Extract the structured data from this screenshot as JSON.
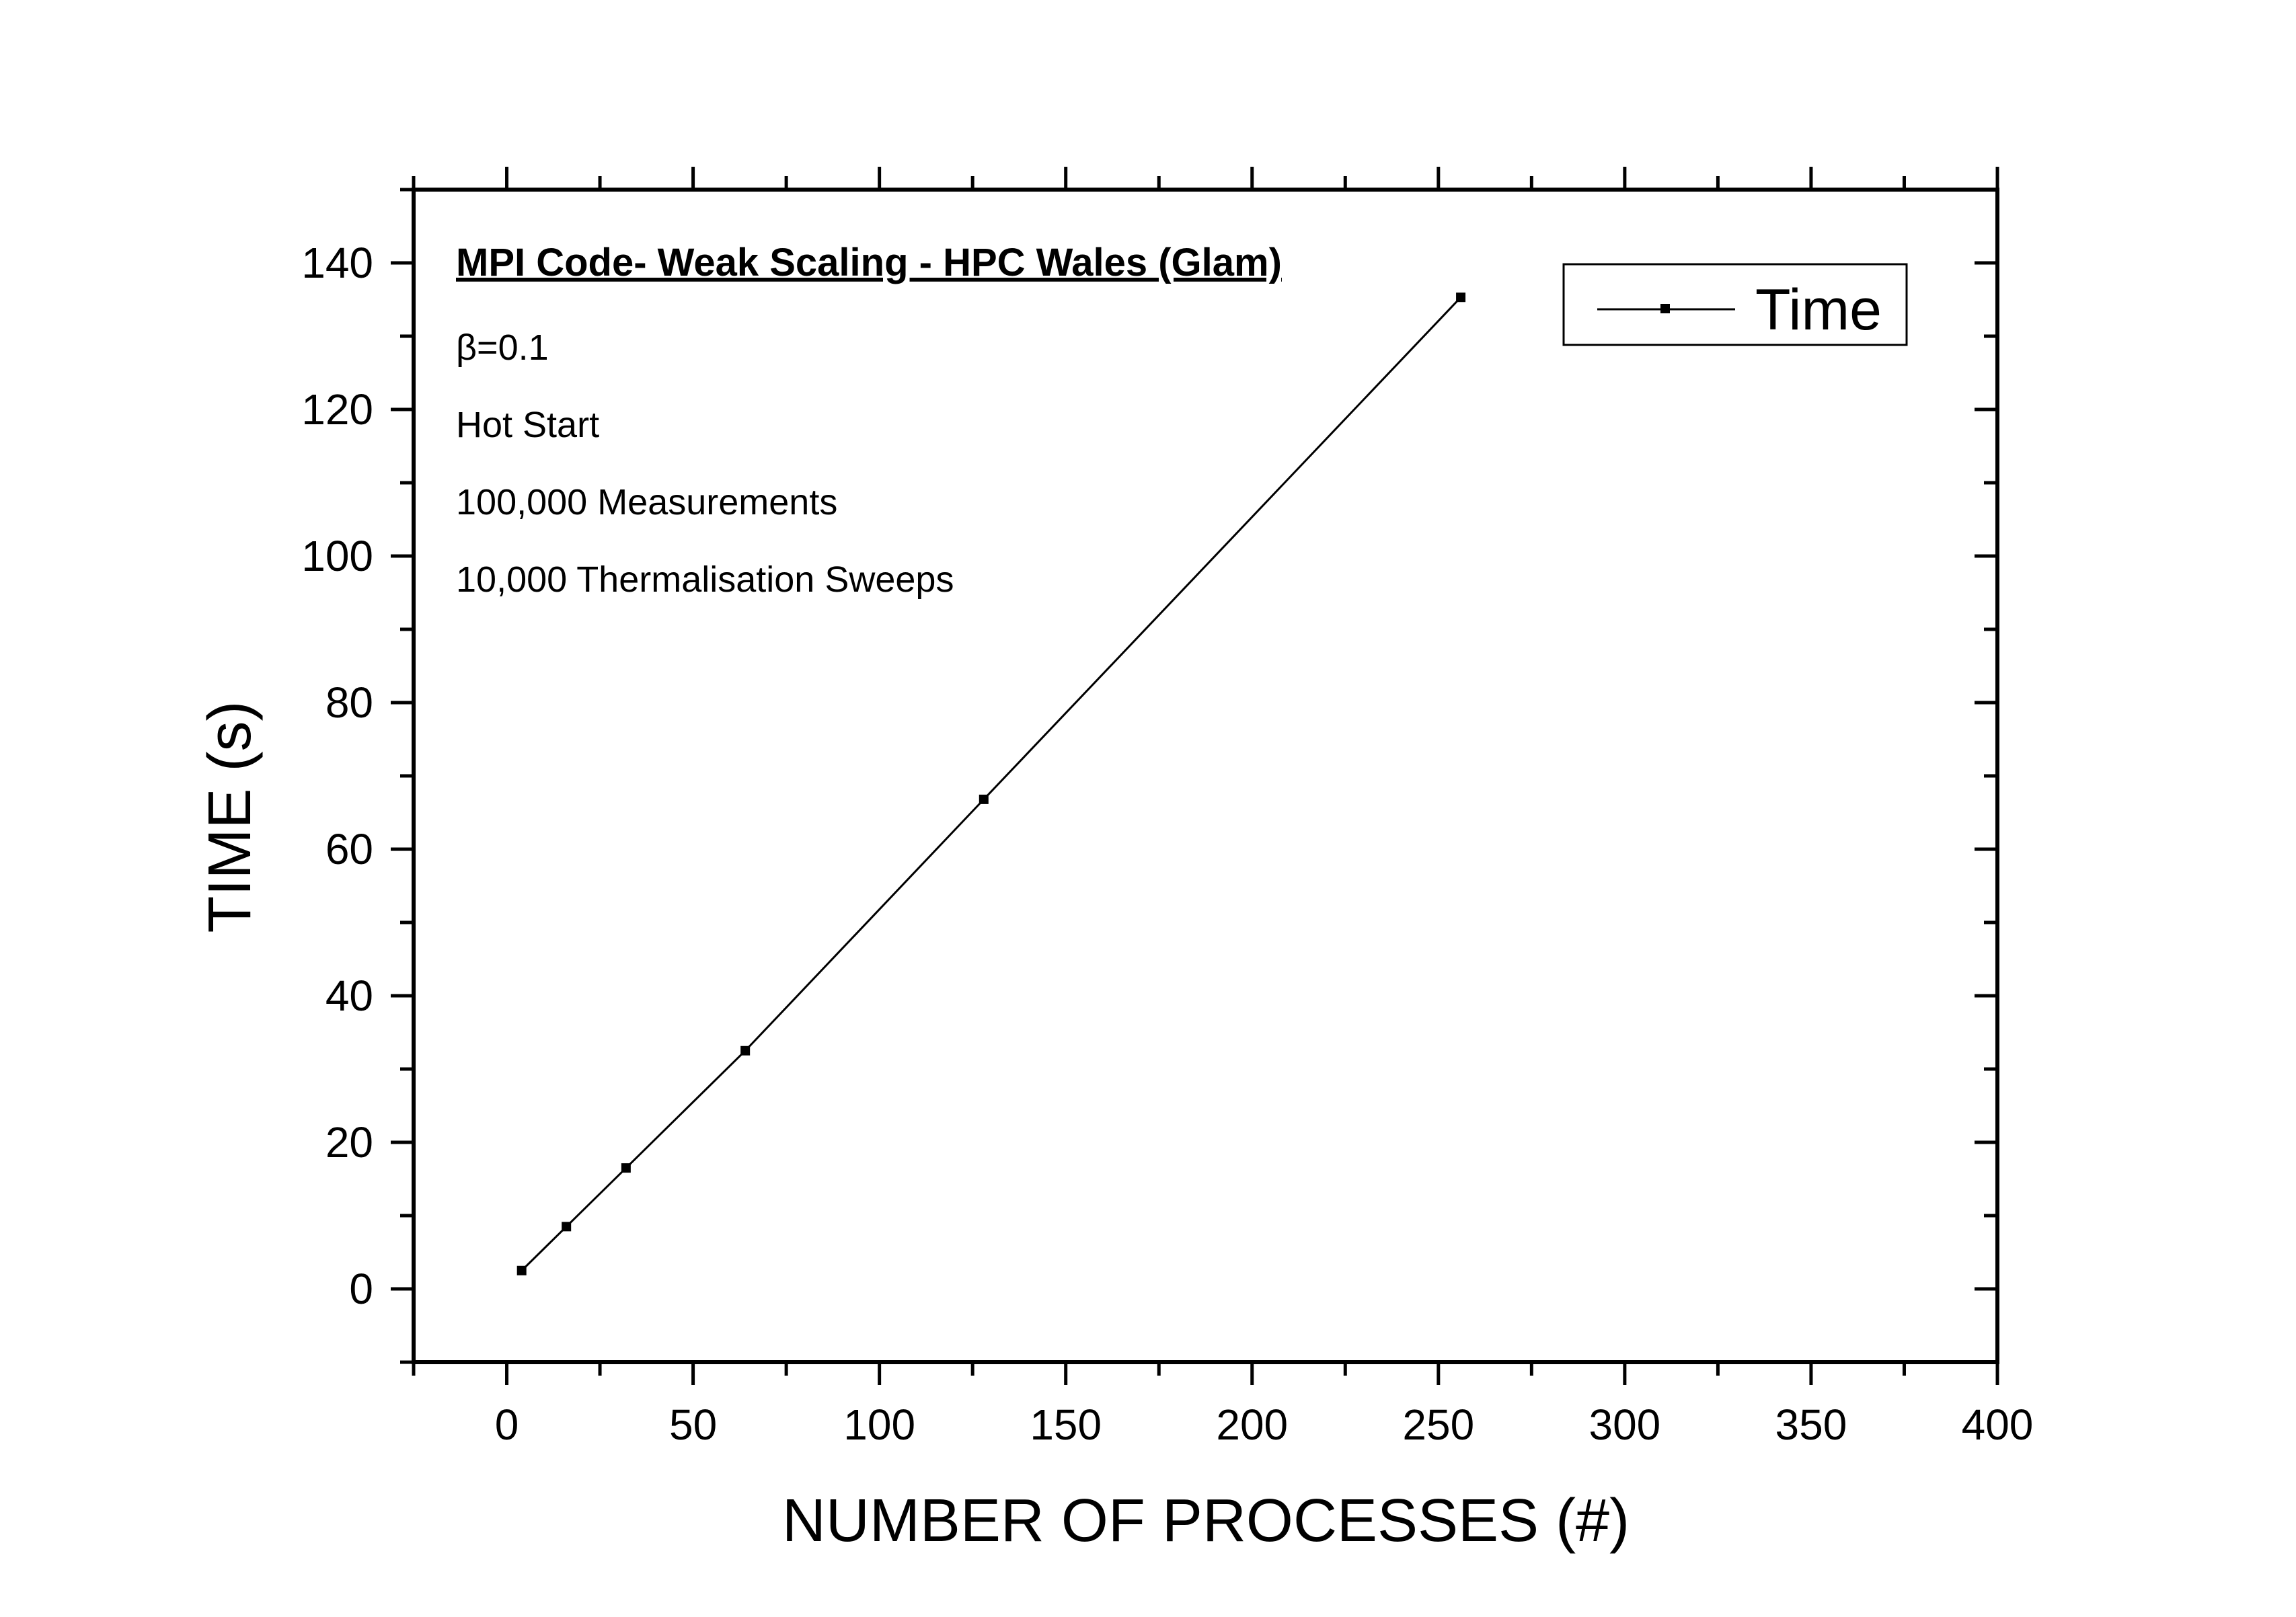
{
  "chart_data": {
    "type": "line",
    "xlabel": "NUMBER OF PROCESSES (#)",
    "ylabel": "TIME (s)",
    "xlim": [
      -25,
      400
    ],
    "ylim": [
      -10,
      150
    ],
    "x_ticks": [
      0,
      50,
      100,
      150,
      200,
      250,
      300,
      350,
      400
    ],
    "y_ticks": [
      0,
      20,
      40,
      60,
      80,
      100,
      120,
      140
    ],
    "x_tick_labels": [
      "0",
      "50",
      "100",
      "150",
      "200",
      "250",
      "300",
      "350",
      "400"
    ],
    "y_tick_labels": [
      "0",
      "20",
      "40",
      "60",
      "80",
      "100",
      "120",
      "140"
    ],
    "grid": false,
    "legend_position": "top-right",
    "series": [
      {
        "name": "Time",
        "color": "#000000",
        "marker": "square",
        "x": [
          4,
          16,
          32,
          64,
          128,
          256
        ],
        "y": [
          2.5,
          8.5,
          16.5,
          32.5,
          66.8,
          135.3
        ]
      }
    ],
    "annotations": {
      "title": "MPI Code- Weak Scaling - HPC Wales (Glam)",
      "lines": [
        "β=0.1",
        "Hot Start",
        "100,000 Measurements",
        "10,000 Thermalisation Sweeps"
      ]
    }
  }
}
